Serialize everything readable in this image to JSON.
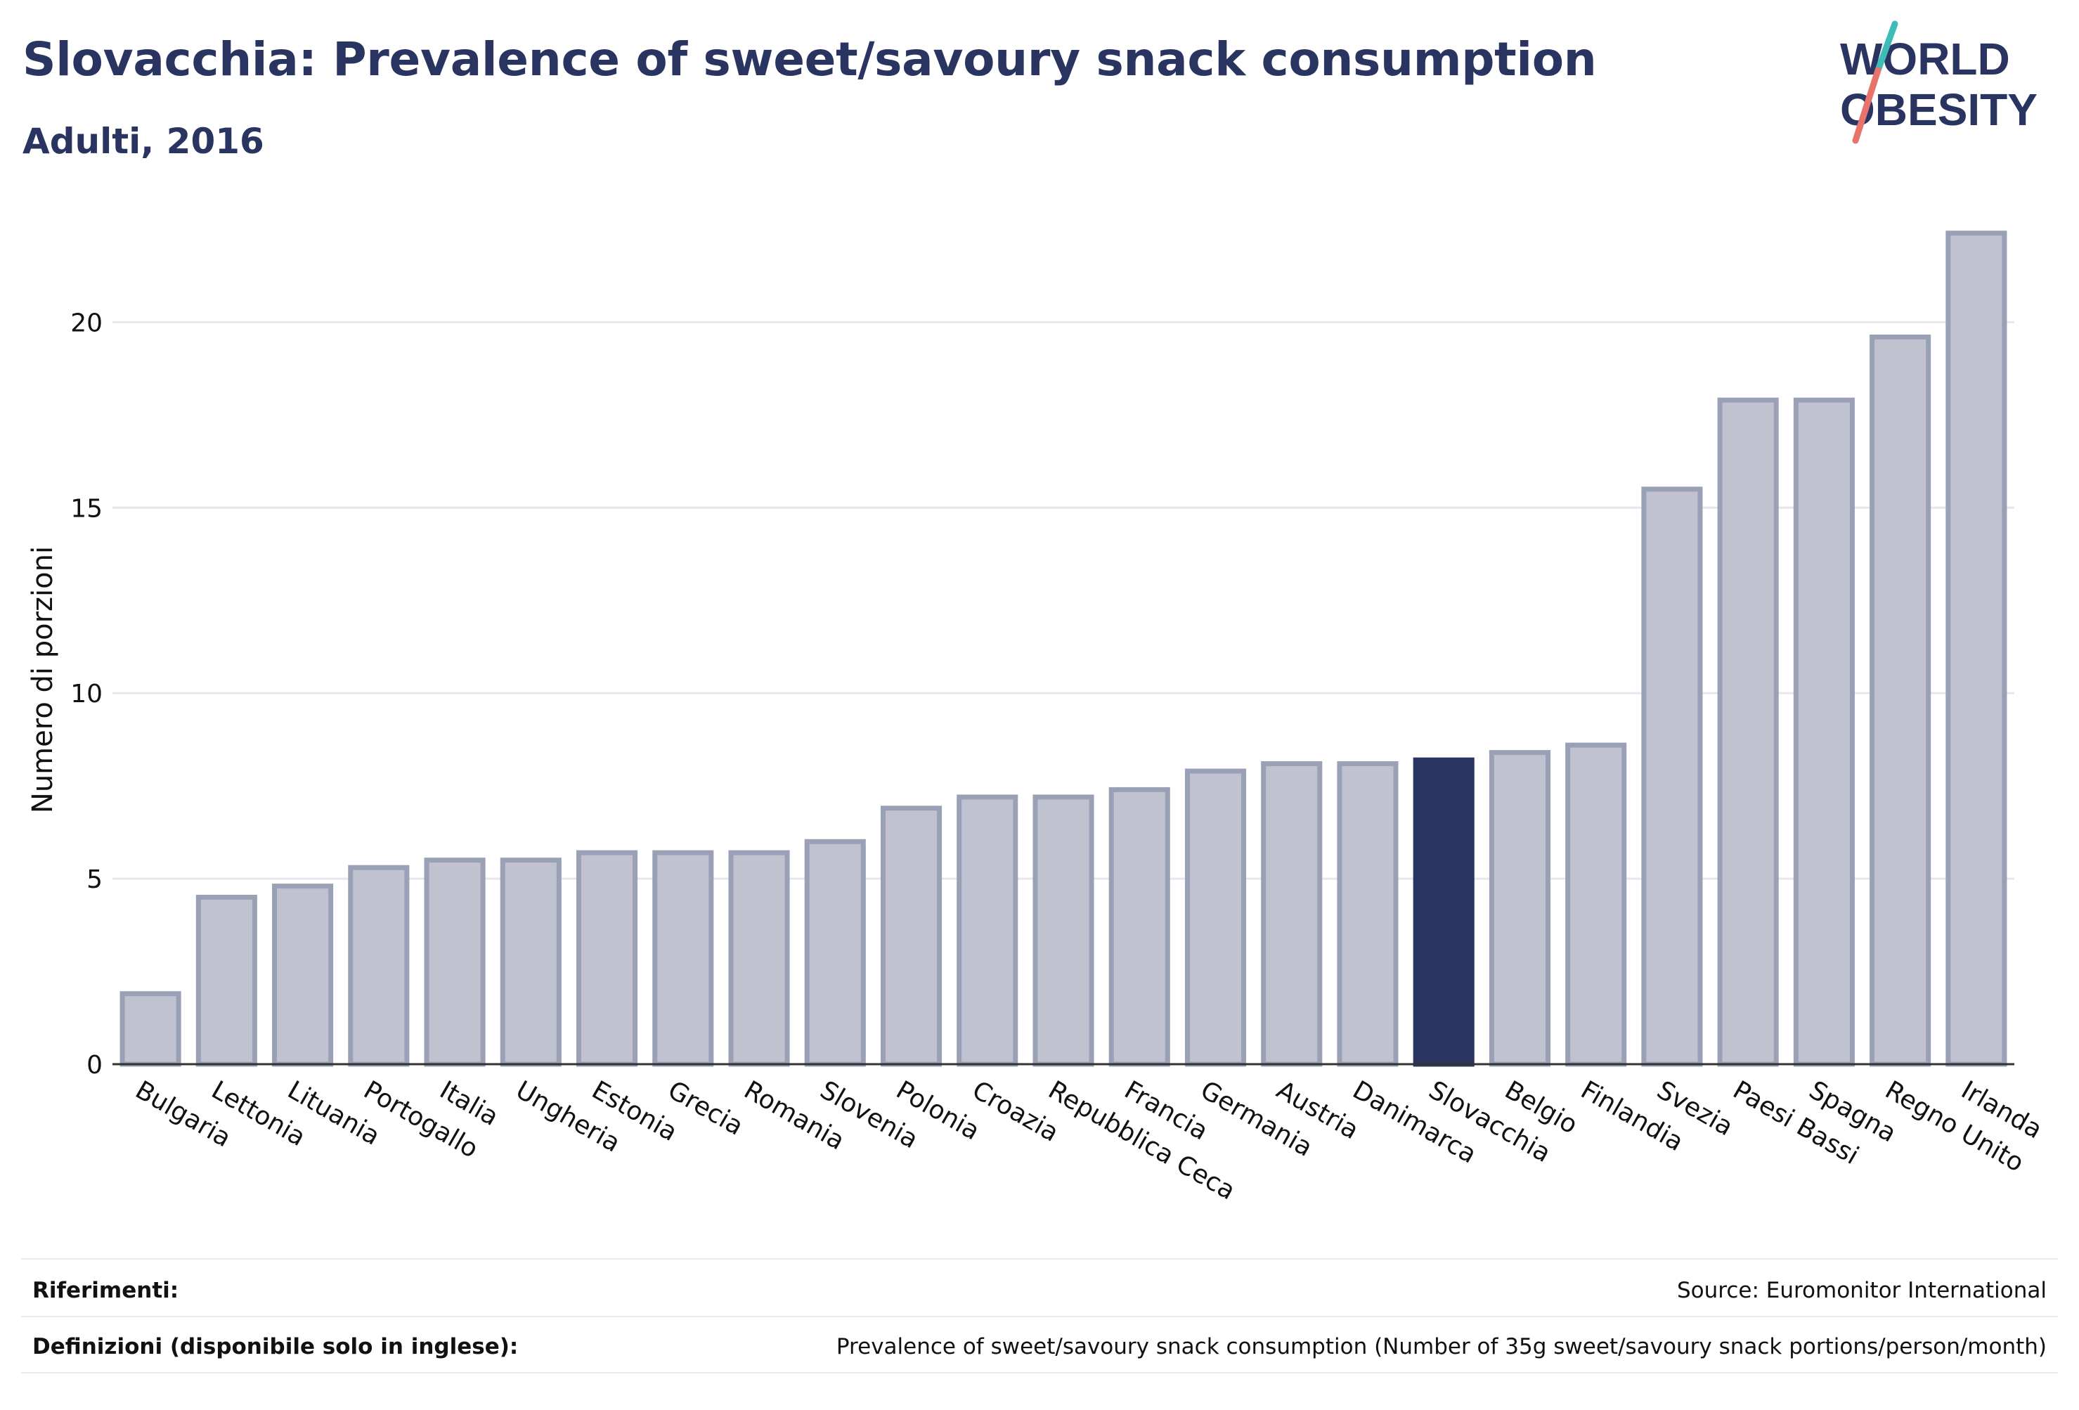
{
  "header": {
    "title": "Slovacchia: Prevalence of sweet/savoury snack consumption",
    "subtitle": "Adulti, 2016"
  },
  "logo": {
    "line1": "WORLD",
    "line2": "OBESITY",
    "accent_teal": "#3dbcb8",
    "accent_coral": "#e8736a"
  },
  "colors": {
    "bar_default_fill": "#c0c3cf",
    "bar_default_stroke": "#9aa0b6",
    "bar_highlight": "#2a3461",
    "text": "#2a3461",
    "grid": "#e6e6ec"
  },
  "chart_data": {
    "type": "bar",
    "ylabel": "Numero di porzioni",
    "ylim": [
      0,
      23
    ],
    "yticks": [
      0,
      5,
      10,
      15,
      20
    ],
    "grid": true,
    "highlight": "Slovacchia",
    "categories": [
      "Bulgaria",
      "Lettonia",
      "Lituania",
      "Portogallo",
      "Italia",
      "Ungheria",
      "Estonia",
      "Grecia",
      "Romania",
      "Slovenia",
      "Polonia",
      "Croazia",
      "Repubblica Ceca",
      "Francia",
      "Germania",
      "Austria",
      "Danimarca",
      "Slovacchia",
      "Belgio",
      "Finlandia",
      "Svezia",
      "Paesi Bassi",
      "Spagna",
      "Regno Unito",
      "Irlanda"
    ],
    "values": [
      1.9,
      4.5,
      4.8,
      5.3,
      5.5,
      5.5,
      5.7,
      5.7,
      5.7,
      6.0,
      6.9,
      7.2,
      7.2,
      7.4,
      7.9,
      8.1,
      8.1,
      8.2,
      8.4,
      8.6,
      15.5,
      17.9,
      17.9,
      19.6,
      22.4
    ]
  },
  "footer": {
    "references_label": "Riferimenti:",
    "references_value": "Source: Euromonitor International",
    "definitions_label": "Definizioni (disponibile solo in inglese):",
    "definitions_value": "Prevalence of sweet/savoury snack consumption (Number of 35g sweet/savoury snack portions/person/month)"
  }
}
